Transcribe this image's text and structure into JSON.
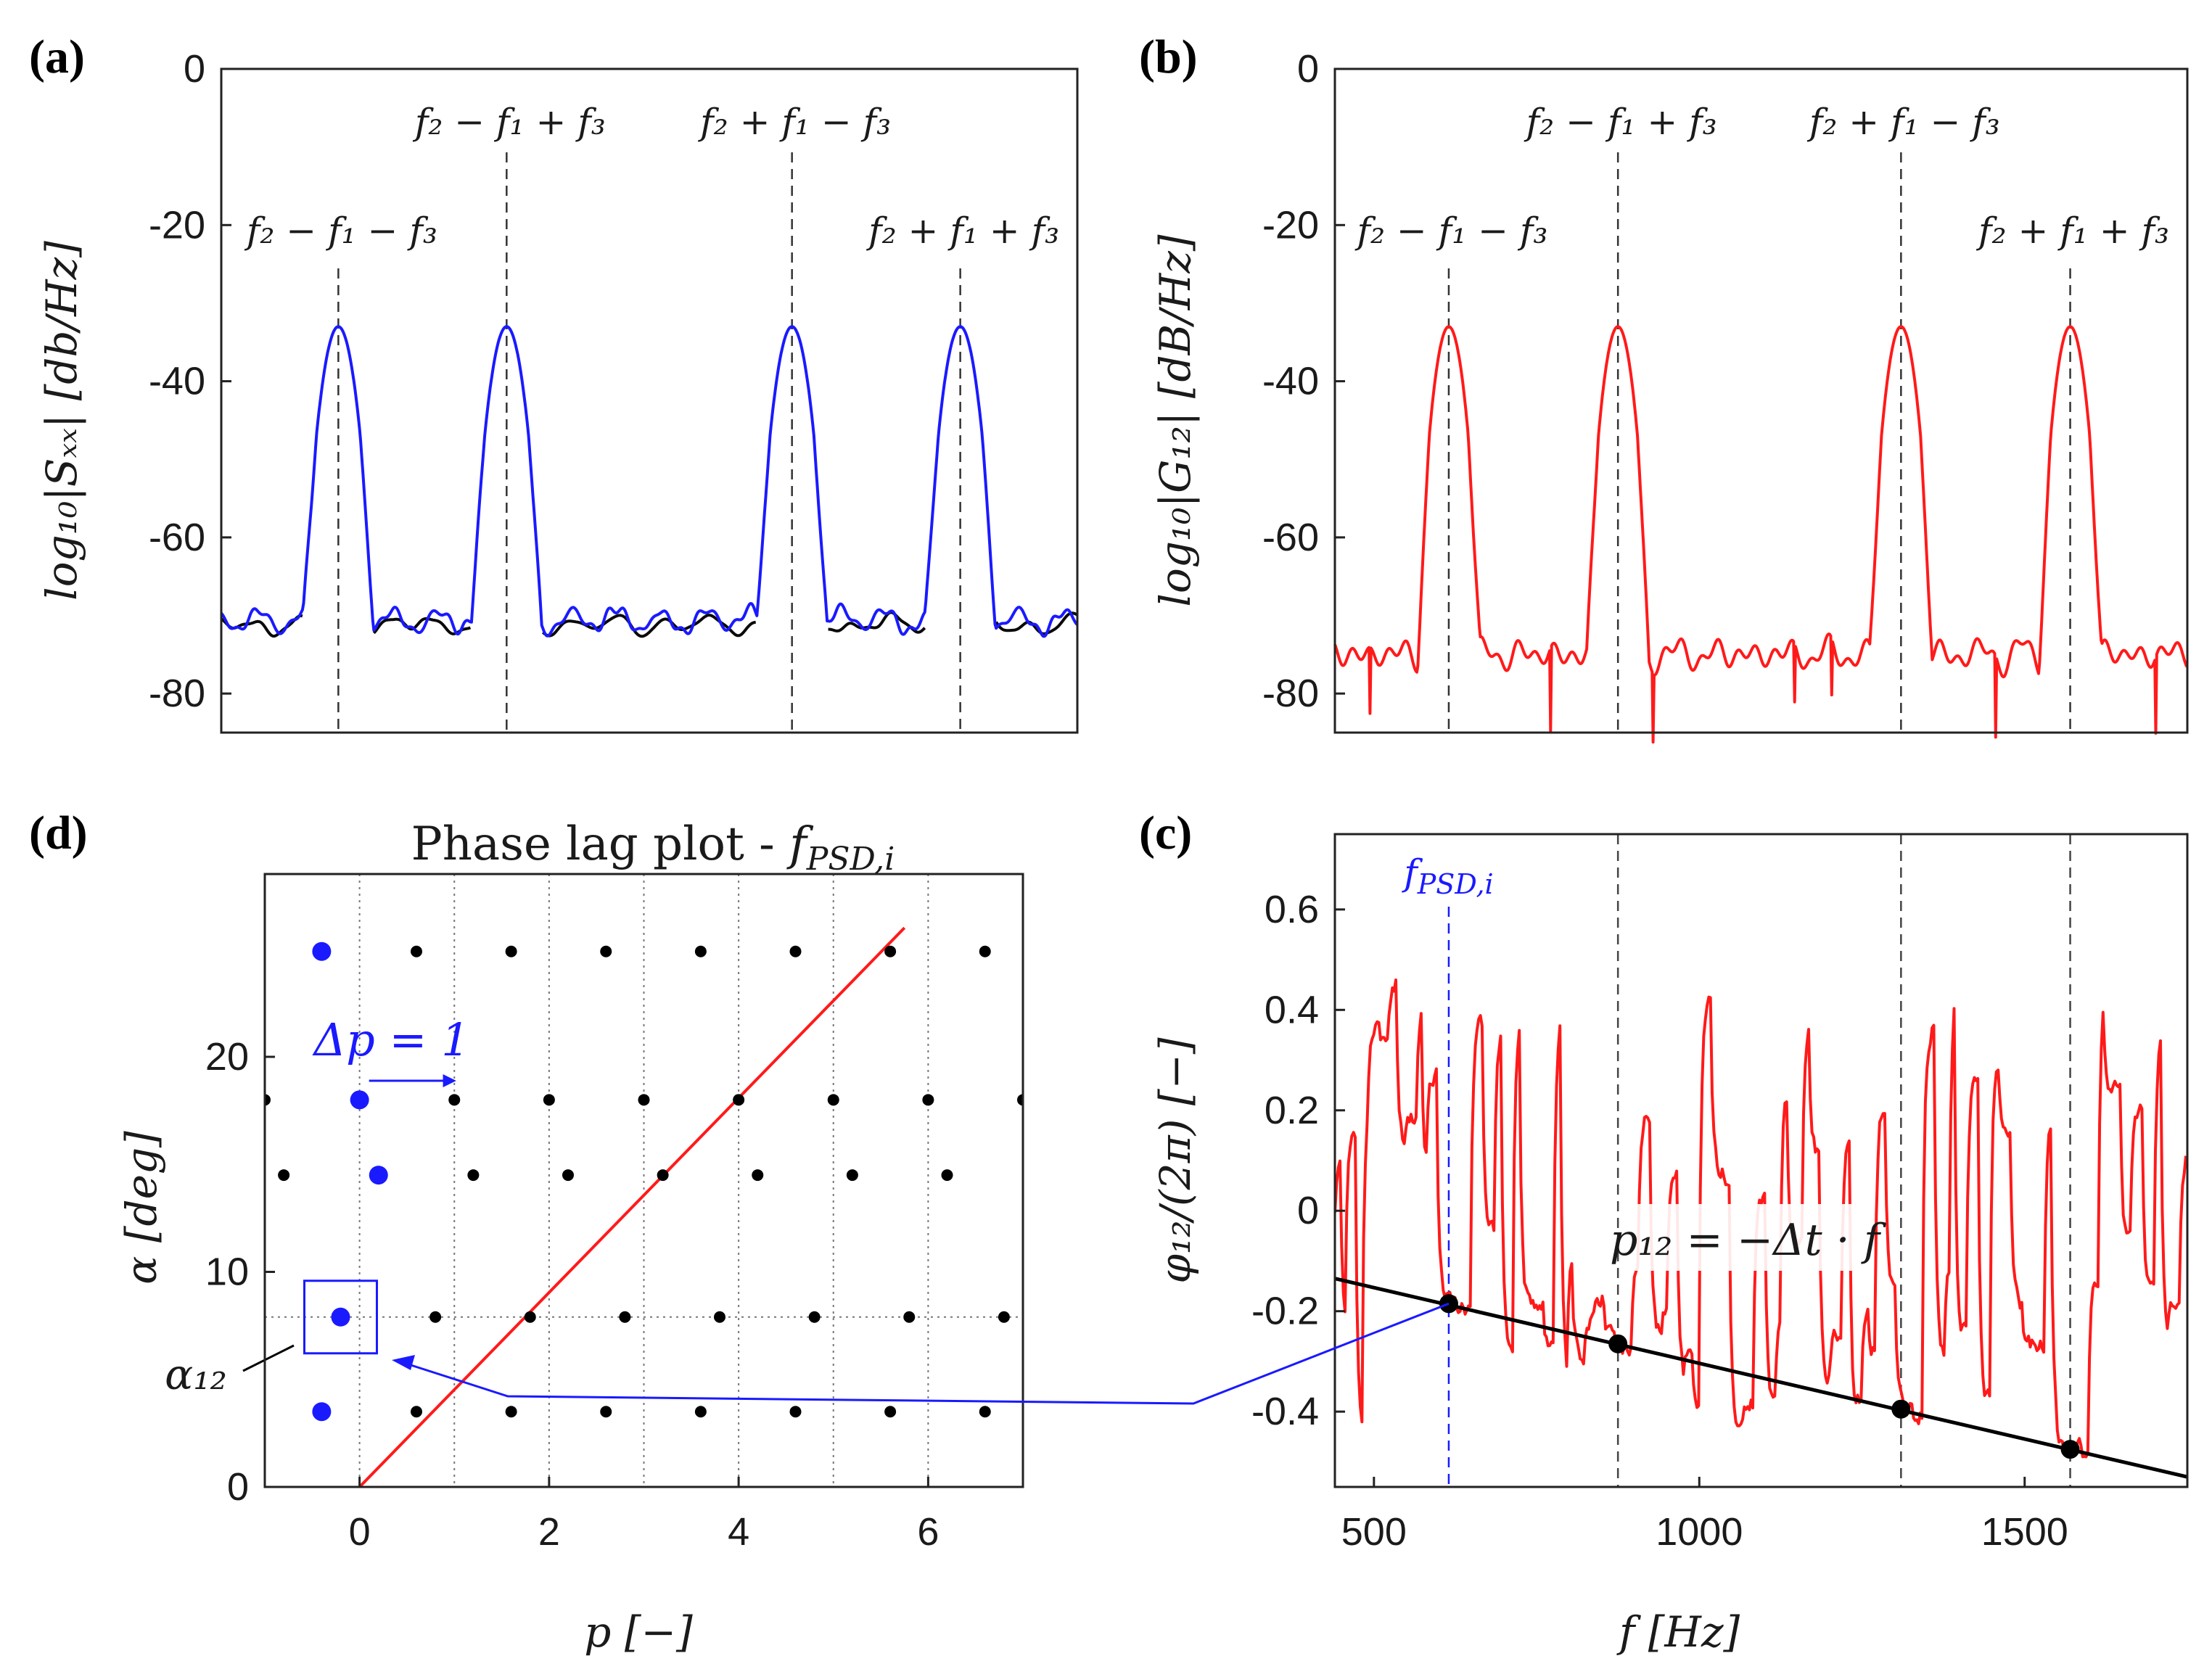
{
  "panels": {
    "a": {
      "label": "(a)"
    },
    "b": {
      "label": "(b)"
    },
    "c": {
      "label": "(c)"
    },
    "d": {
      "label": "(d)"
    }
  },
  "chart_data": [
    {
      "id": "a",
      "type": "line",
      "ylabel": "log₁₀|Sₓₓ| [db/Hz]",
      "ylim": [
        -85,
        0
      ],
      "yticks": [
        0,
        -20,
        -40,
        -60,
        -80
      ],
      "ytick_labels": [
        "0",
        "-20",
        "-40",
        "-60",
        "-80"
      ],
      "xlim": [
        580,
        1750
      ],
      "grid": false,
      "peaks": [
        740,
        970,
        1360,
        1590
      ],
      "peak_level": -33,
      "noise_level": -70.5,
      "series": [
        {
          "color": "#0a0a0a",
          "values_note_level": -71.5
        },
        {
          "color": "#1a1aff",
          "values_note_level": -70.5
        }
      ],
      "vlines": [
        {
          "x": 740,
          "label": "f₂ − f₁ − f₃",
          "label_row": "low"
        },
        {
          "x": 970,
          "label": "f₂ − f₁ + f₃",
          "label_row": "high"
        },
        {
          "x": 1360,
          "label": "f₂ + f₁ − f₃",
          "label_row": "high"
        },
        {
          "x": 1590,
          "label": "f₂ + f₁ + f₃",
          "label_row": "low"
        }
      ]
    },
    {
      "id": "b",
      "type": "line",
      "ylabel": "log₁₀|G₁₂| [dB/Hz]",
      "ylim": [
        -85,
        0
      ],
      "yticks": [
        0,
        -20,
        -40,
        -60,
        -80
      ],
      "ytick_labels": [
        "0",
        "-20",
        "-40",
        "-60",
        "-80"
      ],
      "xlim": [
        440,
        1750
      ],
      "grid": false,
      "peaks": [
        615,
        875,
        1310,
        1570
      ],
      "peak_level": -33,
      "noise_level": -75,
      "series": [
        {
          "color": "#ff1a1a"
        }
      ],
      "vlines": [
        {
          "x": 615,
          "label": "f₂ − f₁ − f₃",
          "label_row": "low"
        },
        {
          "x": 875,
          "label": "f₂ − f₁ + f₃",
          "label_row": "high"
        },
        {
          "x": 1310,
          "label": "f₂ + f₁ − f₃",
          "label_row": "high"
        },
        {
          "x": 1570,
          "label": "f₂ + f₁ + f₃",
          "label_row": "low"
        }
      ]
    },
    {
      "id": "c",
      "type": "line",
      "xlabel": "f [Hz]",
      "ylabel": "φ₁₂/(2π) [−]",
      "xlim": [
        440,
        1750
      ],
      "ylim": [
        -0.55,
        0.75
      ],
      "xticks": [
        500,
        1000,
        1500
      ],
      "xtick_labels": [
        "500",
        "1000",
        "1500"
      ],
      "yticks": [
        0.6,
        0.4,
        0.2,
        0,
        -0.2,
        -0.4
      ],
      "ytick_labels": [
        "0.6",
        "0.4",
        "0.2",
        "0",
        "-0.2",
        "-0.4"
      ],
      "grid": false,
      "series": [
        {
          "color": "#ff1a1a"
        }
      ],
      "fit_line": {
        "color": "#000000",
        "label": "p₁₂ = −Δt · f",
        "x": [
          440,
          1750
        ],
        "y": [
          -0.135,
          -0.53
        ]
      },
      "points": [
        {
          "x": 615,
          "y": -0.185
        },
        {
          "x": 875,
          "y": -0.265
        },
        {
          "x": 1310,
          "y": -0.395
        },
        {
          "x": 1570,
          "y": -0.475
        }
      ],
      "psd_line": {
        "x": 615,
        "label": "f_PSD,i",
        "color": "#1a1aff"
      },
      "vlines": [
        875,
        1310,
        1570
      ]
    },
    {
      "id": "d",
      "type": "scatter",
      "title": "Phase lag plot - f_PSD,i",
      "xlabel": "p [−]",
      "ylabel": "α [deg]",
      "xlim": [
        -1,
        7
      ],
      "ylim": [
        0,
        28.5
      ],
      "xticks": [
        0,
        2,
        4,
        6
      ],
      "xtick_labels": [
        "0",
        "2",
        "4",
        "6"
      ],
      "yticks": [
        0,
        10,
        20
      ],
      "ytick_labels": [
        "0",
        "10",
        "20"
      ],
      "grid_x": [
        0,
        1,
        2,
        3,
        4,
        5,
        6
      ],
      "rows": [
        {
          "alpha": 3.5,
          "start": -0.4,
          "blue": true
        },
        {
          "alpha": 7.9,
          "start": -0.2,
          "blue": true
        },
        {
          "alpha": 14.5,
          "start": -0.8,
          "blue_p": 0.2
        },
        {
          "alpha": 18.0,
          "start": -1.0,
          "blue_p": 0.0
        },
        {
          "alpha": 24.9,
          "start": -0.4,
          "blue": true
        }
      ],
      "fit_line": {
        "color": "#ff1a1a",
        "p": [
          0,
          5.75
        ],
        "alpha": [
          0,
          26
        ]
      },
      "annotation": {
        "text": "Δp = 1",
        "color": "#1a1aff"
      },
      "alpha12_label": "α₁₂",
      "alpha12_value": 7.9
    }
  ],
  "text": {
    "a_ylabel": "log₁₀|Sₓₓ| [db/Hz]",
    "b_ylabel": "log₁₀|G₁₂| [dB/Hz]",
    "c_ylabel": "φ₁₂/(2π) [−]",
    "c_xlabel": "f [Hz]",
    "c_fit_label": "p₁₂ = −Δt · f",
    "c_psd_label": "f",
    "c_psd_sub": "PSD,i",
    "d_title_main": "Phase lag plot - ",
    "d_title_f": "f",
    "d_title_sub": "PSD,i",
    "d_xlabel": "p [−]",
    "d_ylabel": "α [deg]",
    "d_dp": "Δp = 1",
    "d_alpha12": "α₁₂"
  }
}
